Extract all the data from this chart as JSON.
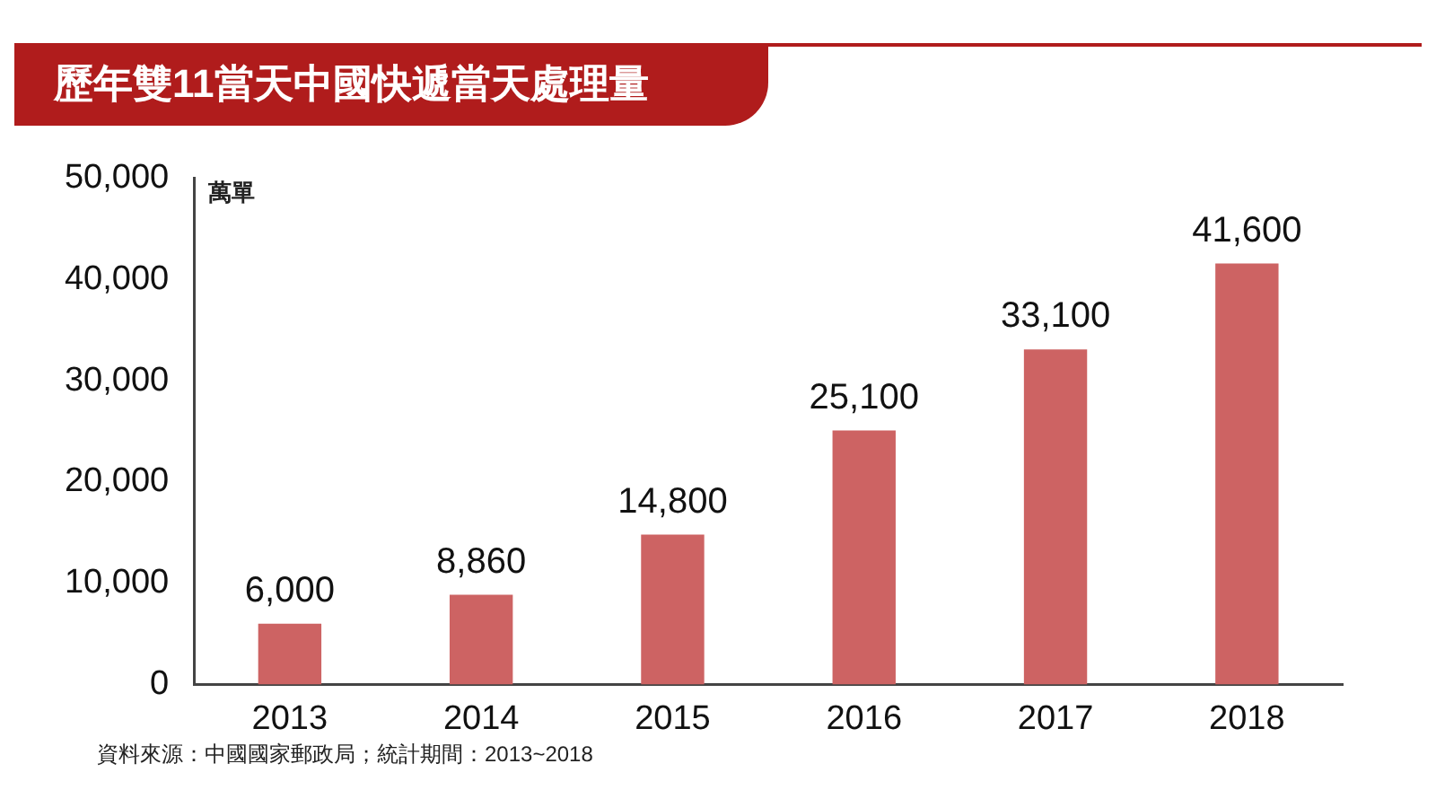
{
  "chart_data": {
    "type": "bar",
    "title": "歷年雙11當天中國快遞當天處理量",
    "ylabel": "萬單",
    "categories": [
      "2013",
      "2014",
      "2015",
      "2016",
      "2017",
      "2018"
    ],
    "values": [
      6000,
      8860,
      14800,
      25100,
      33100,
      41600
    ],
    "color": "#cd6363",
    "ylim": [
      0,
      50000
    ],
    "yticks": [
      {
        "value": 0,
        "label": "0"
      },
      {
        "value": 10000,
        "label": "10,000"
      },
      {
        "value": 20000,
        "label": "20,000"
      },
      {
        "value": 30000,
        "label": "30,000"
      },
      {
        "value": 40000,
        "label": "40,000"
      },
      {
        "value": 50000,
        "label": "50,000"
      }
    ],
    "value_labels": [
      "6,000",
      "8,860",
      "14,800",
      "25,100",
      "33,100",
      "41,600"
    ],
    "grid": false,
    "legend": false,
    "annotations": [
      "資料來源：中國國家郵政局；統計期間：2013~2018"
    ]
  }
}
